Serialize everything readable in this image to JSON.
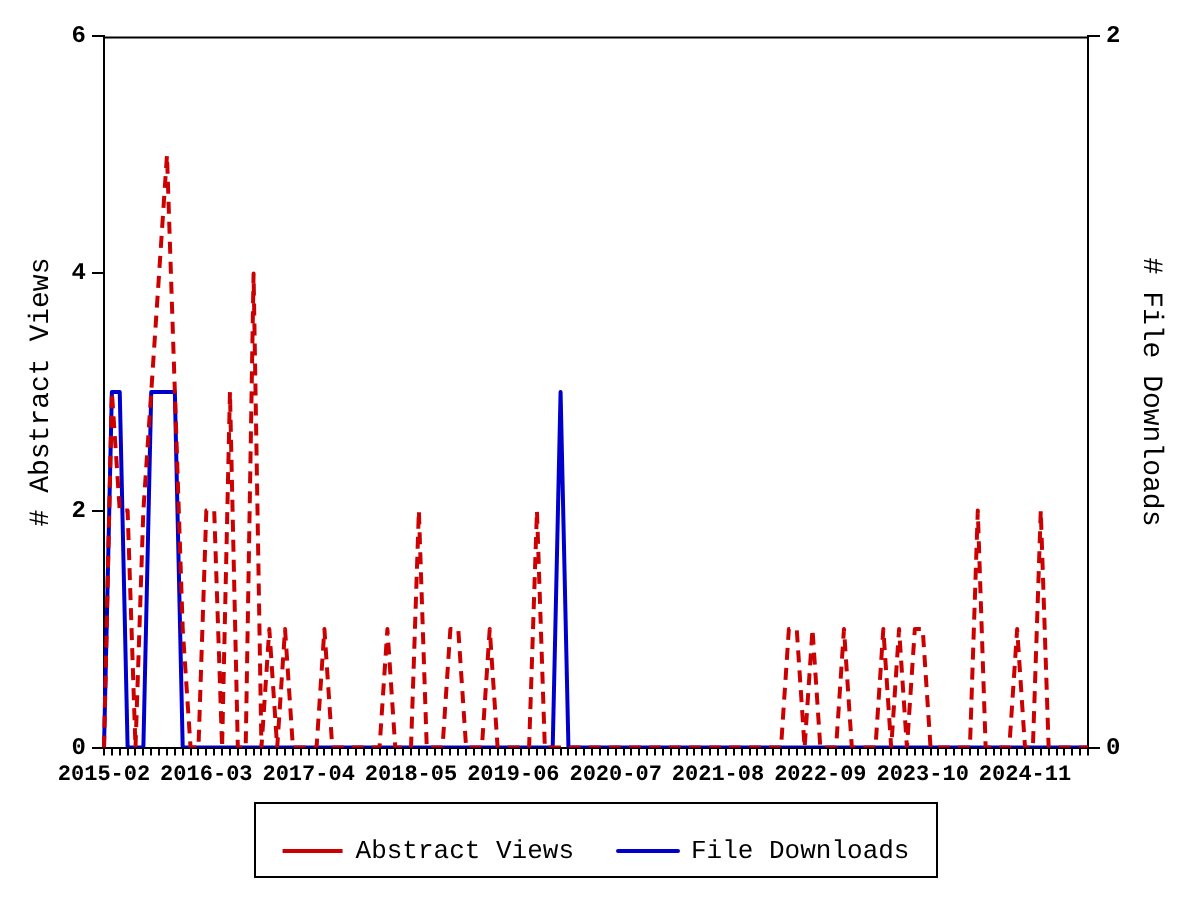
{
  "chart_data": {
    "type": "line",
    "ylabel": "# Abstract Views",
    "y2label": "# File Downloads",
    "categories": [
      "2015-02",
      null,
      null,
      null,
      null,
      null,
      null,
      null,
      null,
      null,
      null,
      null,
      null,
      "2016-03",
      null,
      null,
      null,
      null,
      null,
      null,
      null,
      null,
      null,
      null,
      null,
      null,
      "2017-04",
      null,
      null,
      null,
      null,
      null,
      null,
      null,
      null,
      null,
      null,
      null,
      null,
      "2018-05",
      null,
      null,
      null,
      null,
      null,
      null,
      null,
      null,
      null,
      null,
      null,
      null,
      "2019-06",
      null,
      null,
      null,
      null,
      null,
      null,
      null,
      null,
      null,
      null,
      null,
      null,
      "2020-07",
      null,
      null,
      null,
      null,
      null,
      null,
      null,
      null,
      null,
      null,
      null,
      null,
      "2021-08",
      null,
      null,
      null,
      null,
      null,
      null,
      null,
      null,
      null,
      null,
      null,
      null,
      "2022-09",
      null,
      null,
      null,
      null,
      null,
      null,
      null,
      null,
      null,
      null,
      null,
      null,
      "2023-10",
      null,
      null,
      null,
      null,
      null,
      null,
      null,
      null,
      null,
      null,
      null,
      null,
      "2024-11",
      null,
      null,
      null,
      null,
      null,
      null,
      null,
      null
    ],
    "series": [
      {
        "name": "Abstract Views",
        "color": "#cc0000",
        "line_style": "dashed",
        "values": [
          0,
          3,
          2,
          2,
          0,
          2,
          3,
          4,
          5,
          3,
          1,
          0,
          0,
          2,
          2,
          0,
          3,
          0,
          0,
          4,
          0,
          1,
          0,
          1,
          0,
          0,
          0,
          0,
          1,
          0,
          0,
          0,
          0,
          0,
          0,
          0,
          1,
          0,
          0,
          0,
          2,
          0,
          0,
          0,
          1,
          1,
          0,
          0,
          0,
          1,
          0,
          0,
          0,
          0,
          0,
          2,
          0,
          0,
          0,
          0,
          0,
          0,
          0,
          0,
          0,
          0,
          0,
          0,
          0,
          0,
          0,
          0,
          0,
          0,
          0,
          0,
          0,
          0,
          0,
          0,
          0,
          0,
          0,
          0,
          0,
          0,
          0,
          1,
          1,
          0,
          1,
          0,
          0,
          0,
          1,
          0,
          0,
          0,
          0,
          1,
          0,
          1,
          0,
          1,
          1,
          0,
          0,
          0,
          0,
          0,
          0,
          2,
          0,
          0,
          0,
          0,
          1,
          0,
          0,
          2,
          0,
          0,
          0,
          0,
          0,
          0
        ]
      },
      {
        "name": "File Downloads",
        "color": "#0000cc",
        "line_style": "solid",
        "axis": "y2",
        "values": [
          0,
          1,
          1,
          0,
          0,
          0,
          1,
          1,
          1,
          1,
          0,
          0,
          0,
          0,
          0,
          0,
          0,
          0,
          0,
          0,
          0,
          0,
          0,
          0,
          0,
          0,
          0,
          0,
          0,
          0,
          0,
          0,
          0,
          0,
          0,
          0,
          0,
          0,
          0,
          0,
          0,
          0,
          0,
          0,
          0,
          0,
          0,
          0,
          0,
          0,
          0,
          0,
          0,
          0,
          0,
          0,
          0,
          0,
          1,
          0,
          0,
          0,
          0,
          0,
          0,
          0,
          0,
          0,
          0,
          0,
          0,
          0,
          0,
          0,
          0,
          0,
          0,
          0,
          0,
          0,
          0,
          0,
          0,
          0,
          0,
          0,
          0,
          0,
          0,
          0,
          0,
          0,
          0,
          0,
          0,
          0,
          0,
          0,
          0,
          0,
          0,
          0,
          0,
          0,
          0,
          0,
          0,
          0,
          0,
          0,
          0,
          0,
          0,
          0,
          0,
          0,
          0,
          0,
          0,
          0,
          0,
          0,
          0,
          0,
          0,
          0
        ]
      }
    ],
    "ylim": [
      0,
      6
    ],
    "yticks": [
      0,
      2,
      4,
      6
    ],
    "y2lim": [
      0,
      2
    ],
    "y2ticks": [
      0,
      2
    ],
    "grid": false,
    "legend": "bottom",
    "marker": "none"
  }
}
